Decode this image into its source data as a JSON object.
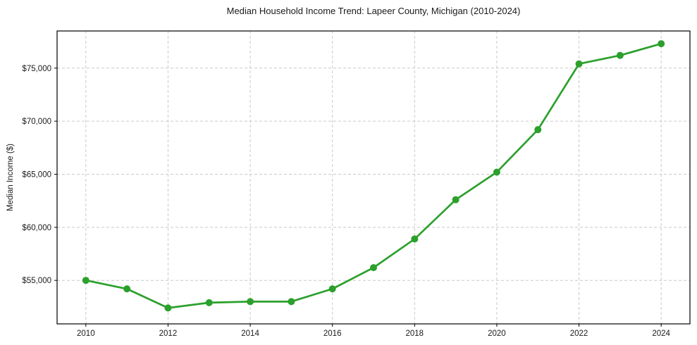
{
  "chart_data": {
    "type": "line",
    "title": "Median Household Income Trend: Lapeer County, Michigan (2010-2024)",
    "xlabel": "",
    "ylabel": "Median Income ($)",
    "x": [
      2010,
      2011,
      2012,
      2013,
      2014,
      2015,
      2016,
      2017,
      2018,
      2019,
      2020,
      2021,
      2022,
      2023,
      2024
    ],
    "values": [
      55000,
      54200,
      52400,
      52900,
      53000,
      53000,
      54200,
      56200,
      58900,
      62600,
      65200,
      69200,
      75400,
      76200,
      77300
    ],
    "series_name": "Median Household Income",
    "series_color": "#2ca02c",
    "marker": "circle",
    "xlim": [
      2009.3,
      2024.7
    ],
    "ylim": [
      50900,
      78500
    ],
    "x_ticks": [
      2010,
      2012,
      2014,
      2016,
      2018,
      2020,
      2022,
      2024
    ],
    "x_tick_labels": [
      "2010",
      "2012",
      "2014",
      "2016",
      "2018",
      "2020",
      "2022",
      "2024"
    ],
    "y_ticks": [
      55000,
      60000,
      65000,
      70000,
      75000
    ],
    "y_tick_labels": [
      "$55,000",
      "$60,000",
      "$65,000",
      "$70,000",
      "$75,000"
    ],
    "grid": true,
    "grid_style": "dashed",
    "grid_color": "#c9c9c9",
    "spine_color": "#000000",
    "background_color": "#ffffff",
    "legend": "none"
  }
}
